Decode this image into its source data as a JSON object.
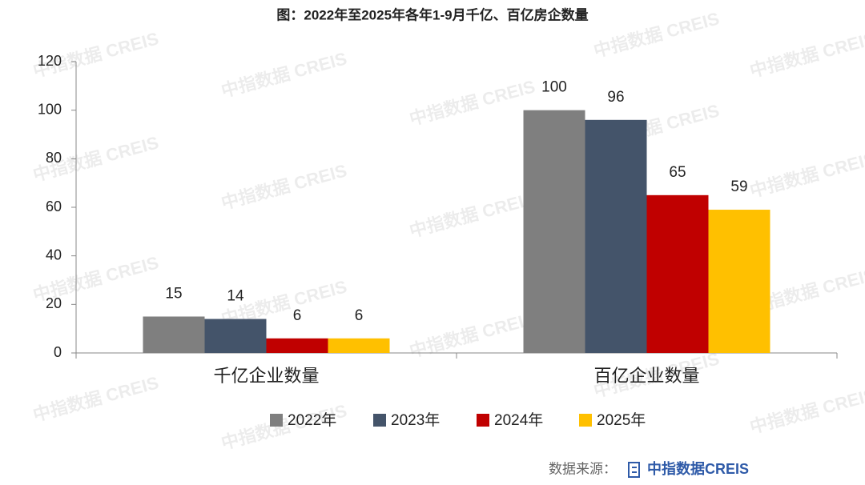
{
  "chart_data": {
    "type": "bar",
    "title": "图：2022年至2025年各年1-9月千亿、百亿房企数量",
    "categories": [
      "千亿企业数量",
      "百亿企业数量"
    ],
    "series": [
      {
        "name": "2022年",
        "color": "#7f7f7f",
        "values": [
          15,
          100
        ]
      },
      {
        "name": "2023年",
        "color": "#44546a",
        "values": [
          14,
          96
        ]
      },
      {
        "name": "2024年",
        "color": "#c00000",
        "values": [
          6,
          65
        ]
      },
      {
        "name": "2025年",
        "color": "#ffc000",
        "values": [
          6,
          59
        ]
      }
    ],
    "ylim": [
      0,
      120
    ],
    "yticks": [
      0,
      20,
      40,
      60,
      80,
      100,
      120
    ],
    "grid": false,
    "legend": "bottom",
    "source_label": "数据来源：",
    "source": "中指数据CREIS",
    "watermark": "中指数据 CREIS"
  }
}
